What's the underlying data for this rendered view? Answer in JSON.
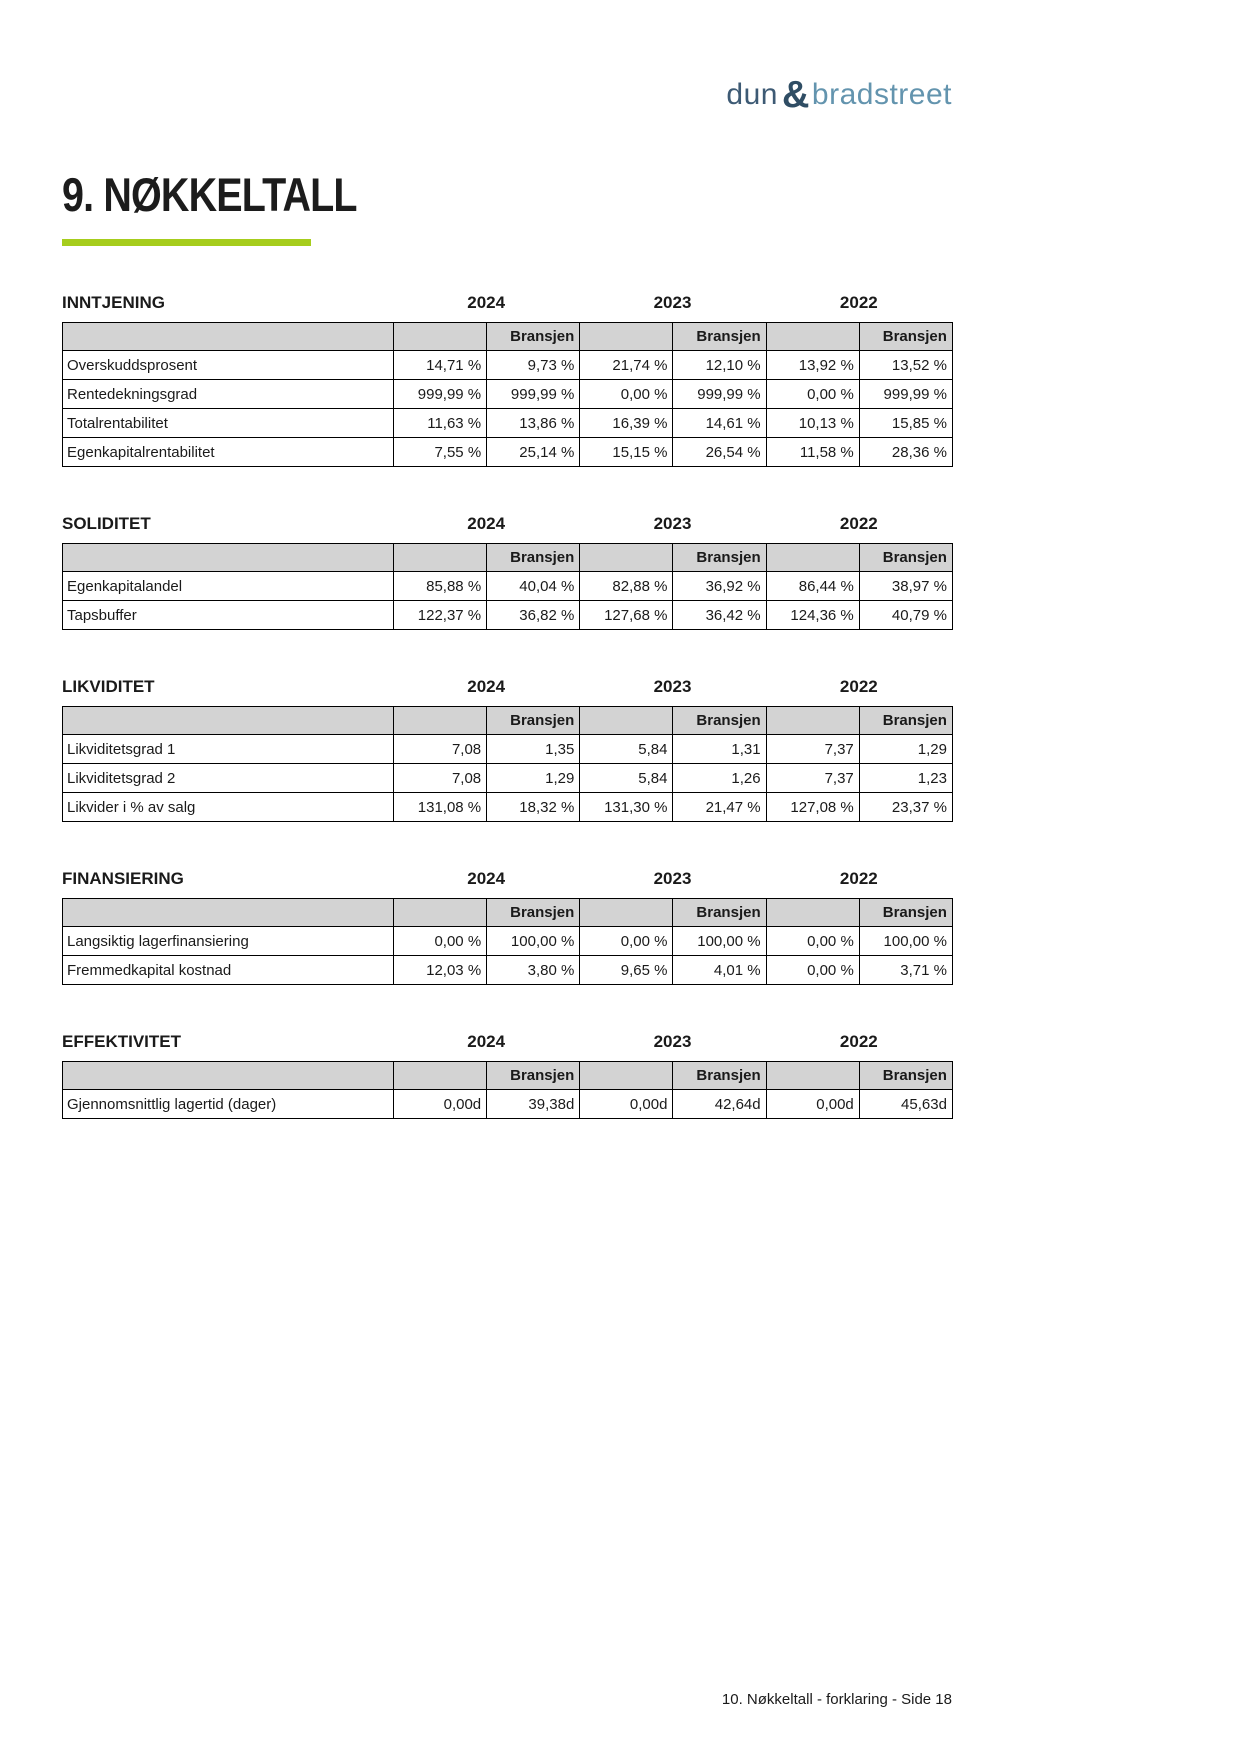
{
  "logo": {
    "dun": "dun",
    "amp": "&",
    "bradstreet": "bradstreet"
  },
  "page_title": "9. NØKKELTALL",
  "years": [
    "2024",
    "2023",
    "2022"
  ],
  "bransjen_label": "Bransjen",
  "colors": {
    "accent_green": "#a6cd1d",
    "logo_dark": "#3d5a74",
    "logo_light": "#6394ae",
    "table_header_gray": "#d3d3d3"
  },
  "sections": [
    {
      "title": "INNTJENING",
      "rows": [
        {
          "label": "Overskuddsprosent",
          "values": [
            "14,71 %",
            "9,73 %",
            "21,74 %",
            "12,10 %",
            "13,92 %",
            "13,52 %"
          ]
        },
        {
          "label": "Rentedekningsgrad",
          "values": [
            "999,99 %",
            "999,99 %",
            "0,00 %",
            "999,99 %",
            "0,00 %",
            "999,99 %"
          ]
        },
        {
          "label": "Totalrentabilitet",
          "values": [
            "11,63 %",
            "13,86 %",
            "16,39 %",
            "14,61 %",
            "10,13 %",
            "15,85 %"
          ]
        },
        {
          "label": "Egenkapitalrentabilitet",
          "values": [
            "7,55 %",
            "25,14 %",
            "15,15 %",
            "26,54 %",
            "11,58 %",
            "28,36 %"
          ]
        }
      ]
    },
    {
      "title": "SOLIDITET",
      "rows": [
        {
          "label": "Egenkapitalandel",
          "values": [
            "85,88 %",
            "40,04 %",
            "82,88 %",
            "36,92 %",
            "86,44 %",
            "38,97 %"
          ]
        },
        {
          "label": "Tapsbuffer",
          "values": [
            "122,37 %",
            "36,82 %",
            "127,68 %",
            "36,42 %",
            "124,36 %",
            "40,79 %"
          ]
        }
      ]
    },
    {
      "title": "LIKVIDITET",
      "rows": [
        {
          "label": "Likviditetsgrad 1",
          "values": [
            "7,08",
            "1,35",
            "5,84",
            "1,31",
            "7,37",
            "1,29"
          ]
        },
        {
          "label": "Likviditetsgrad 2",
          "values": [
            "7,08",
            "1,29",
            "5,84",
            "1,26",
            "7,37",
            "1,23"
          ]
        },
        {
          "label": "Likvider i % av salg",
          "values": [
            "131,08 %",
            "18,32 %",
            "131,30 %",
            "21,47 %",
            "127,08 %",
            "23,37 %"
          ]
        }
      ]
    },
    {
      "title": "FINANSIERING",
      "rows": [
        {
          "label": "Langsiktig lagerfinansiering",
          "values": [
            "0,00 %",
            "100,00 %",
            "0,00 %",
            "100,00 %",
            "0,00 %",
            "100,00 %"
          ]
        },
        {
          "label": "Fremmedkapital kostnad",
          "values": [
            "12,03 %",
            "3,80 %",
            "9,65 %",
            "4,01 %",
            "0,00 %",
            "3,71 %"
          ]
        }
      ]
    },
    {
      "title": "EFFEKTIVITET",
      "rows": [
        {
          "label": "Gjennomsnittlig lagertid (dager)",
          "values": [
            "0,00d",
            "39,38d",
            "0,00d",
            "42,64d",
            "0,00d",
            "45,63d"
          ]
        }
      ]
    }
  ],
  "footer": {
    "text": "10. Nøkkeltall - forklaring - Side 18"
  }
}
